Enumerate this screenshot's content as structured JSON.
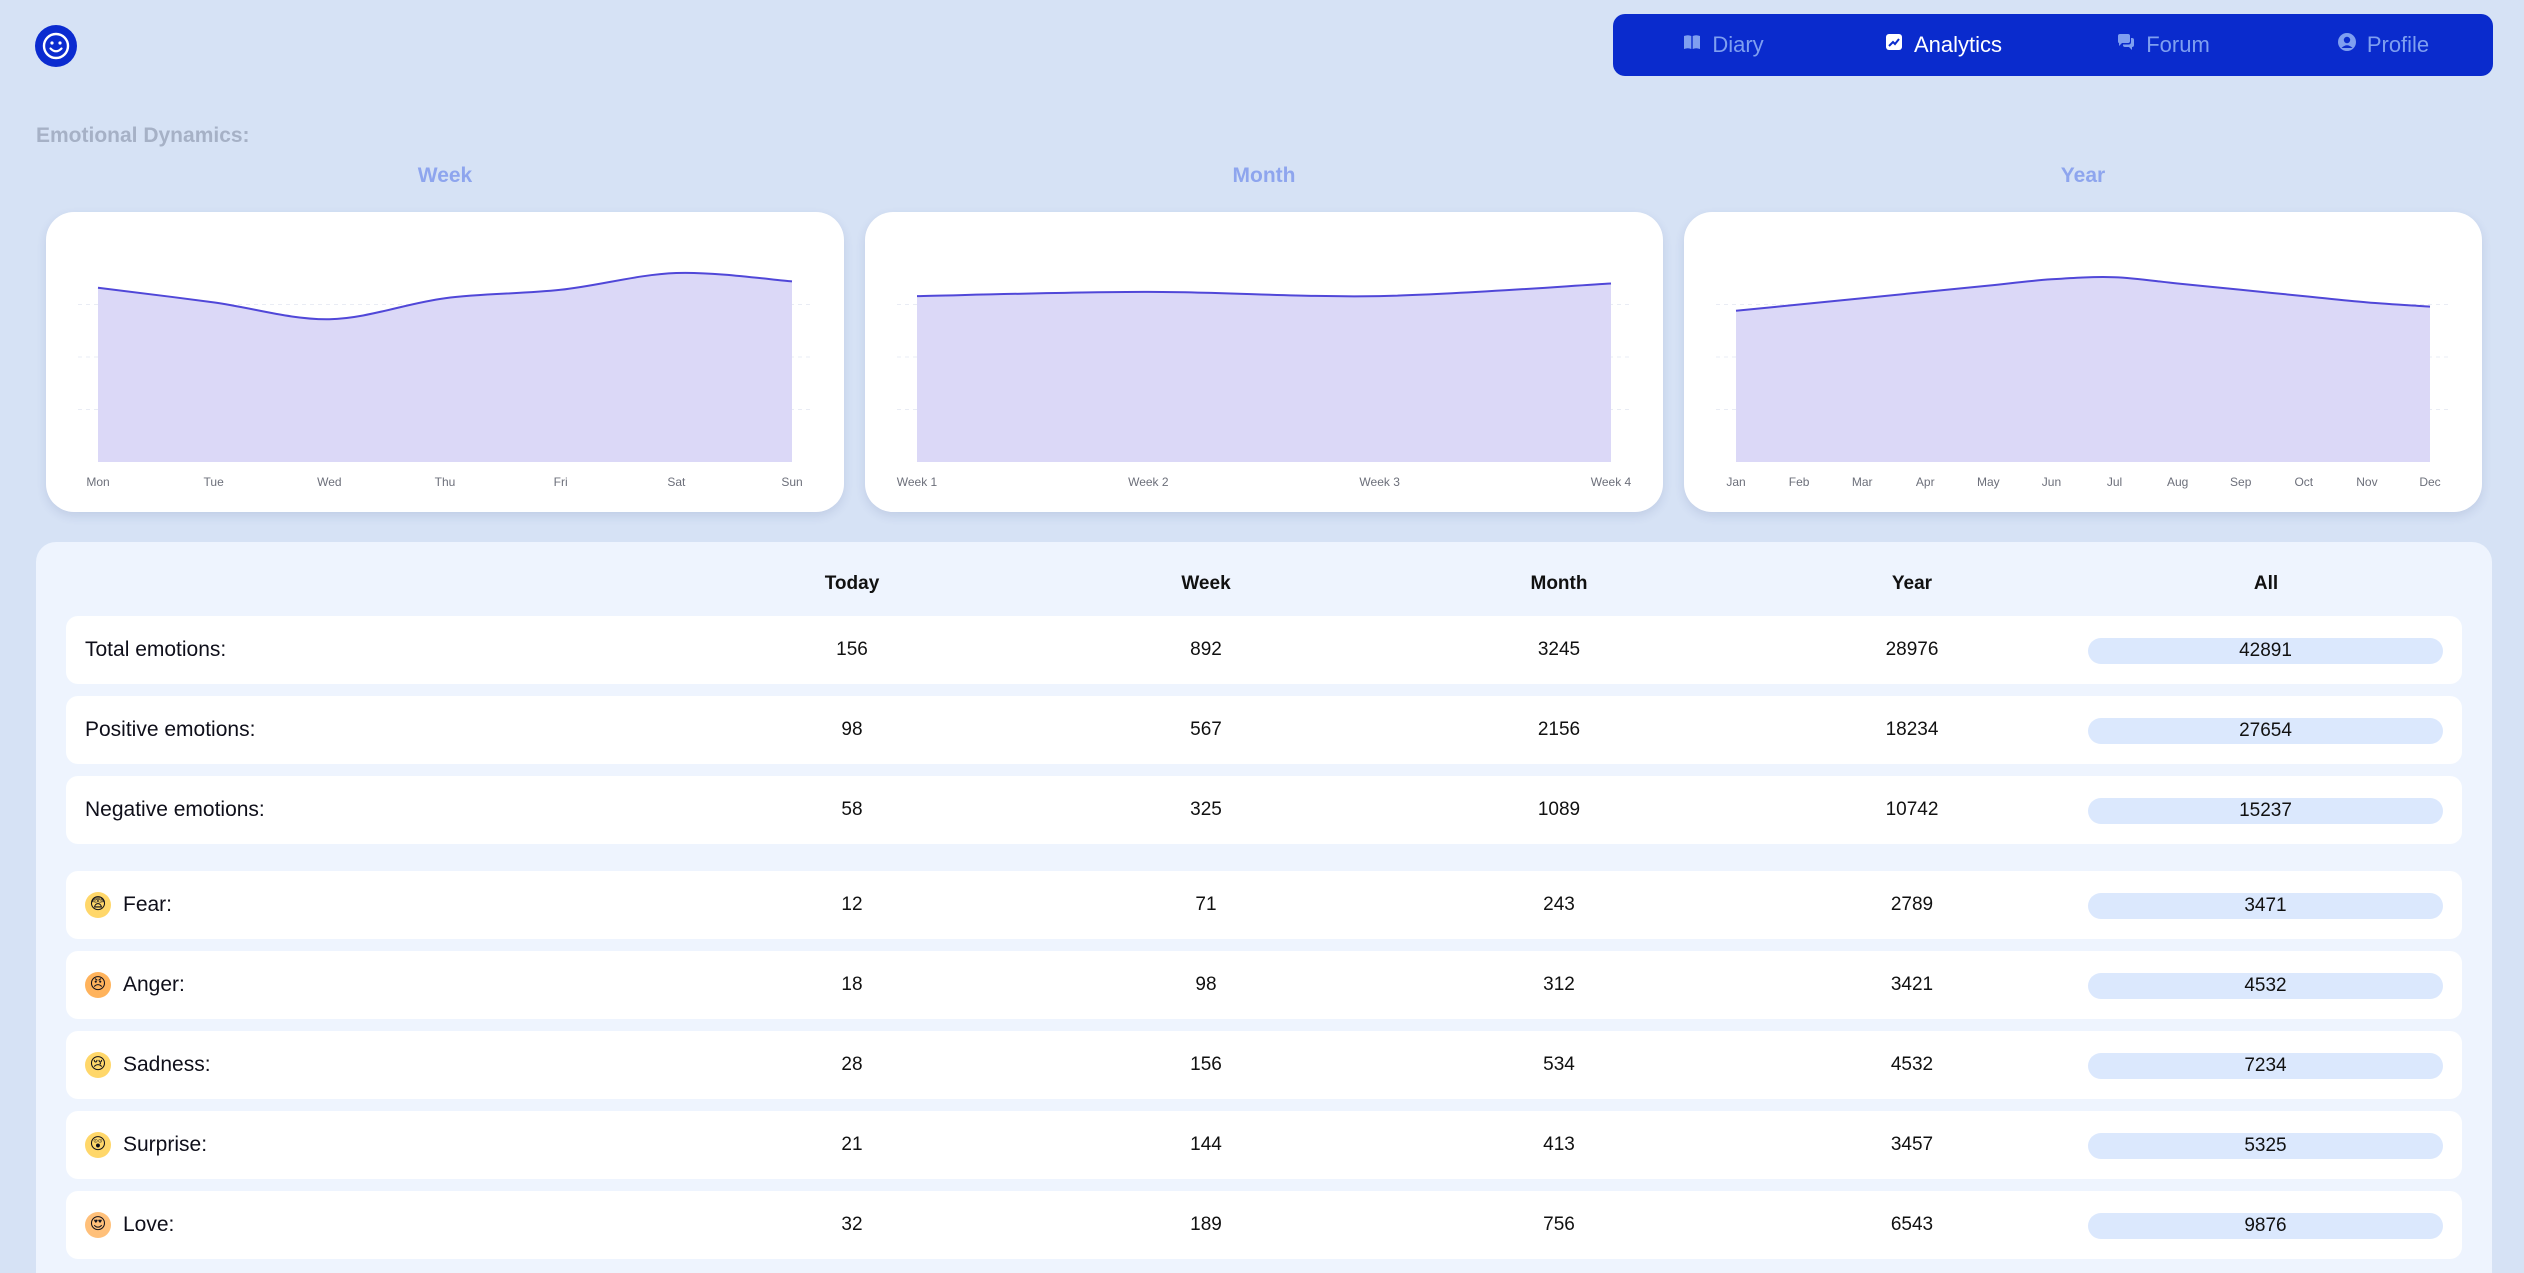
{
  "app": {
    "logo_icon": "smiley-icon"
  },
  "nav": {
    "items": [
      {
        "label": "Diary",
        "icon": "book-icon",
        "active": false
      },
      {
        "label": "Analytics",
        "icon": "chart-icon",
        "active": true
      },
      {
        "label": "Forum",
        "icon": "chat-icon",
        "active": false
      },
      {
        "label": "Profile",
        "icon": "user-icon",
        "active": false
      }
    ]
  },
  "section_title": "Emotional Dynamics:",
  "colors": {
    "accent": "#0a2bcd",
    "chart_line": "#5047d8",
    "chart_fill": "#dbd8f7",
    "background": "#d6e2f5"
  },
  "chart_data": [
    {
      "type": "area",
      "title": "Week",
      "categories": [
        "Mon",
        "Tue",
        "Wed",
        "Thu",
        "Fri",
        "Sat",
        "Sun"
      ],
      "values": [
        0.83,
        0.76,
        0.68,
        0.78,
        0.82,
        0.9,
        0.86
      ],
      "ylim": [
        0,
        1
      ],
      "grid": true
    },
    {
      "type": "area",
      "title": "Month",
      "categories": [
        "Week 1",
        "Week 2",
        "Week 3",
        "Week 4"
      ],
      "values": [
        0.79,
        0.81,
        0.79,
        0.85
      ],
      "ylim": [
        0,
        1
      ],
      "grid": true
    },
    {
      "type": "area",
      "title": "Year",
      "categories": [
        "Jan",
        "Feb",
        "Mar",
        "Apr",
        "May",
        "Jun",
        "Jul",
        "Aug",
        "Sep",
        "Oct",
        "Nov",
        "Dec"
      ],
      "values": [
        0.72,
        0.75,
        0.78,
        0.81,
        0.84,
        0.87,
        0.88,
        0.85,
        0.82,
        0.79,
        0.76,
        0.74
      ],
      "ylim": [
        0,
        1
      ],
      "grid": true
    }
  ],
  "table": {
    "columns": [
      "Today",
      "Week",
      "Month",
      "Year",
      "All"
    ],
    "rows": [
      {
        "label": "Total emotions:",
        "values": [
          "156",
          "892",
          "3245",
          "28976",
          "42891"
        ]
      },
      {
        "label": "Positive emotions:",
        "values": [
          "98",
          "567",
          "2156",
          "18234",
          "27654"
        ]
      },
      {
        "label": "Negative emotions:",
        "values": [
          "58",
          "325",
          "1089",
          "10742",
          "15237"
        ]
      },
      {
        "label": "Fear:",
        "emoji": "😨",
        "icon": "fear-emoji-icon",
        "values": [
          "12",
          "71",
          "243",
          "2789",
          "3471"
        ]
      },
      {
        "label": "Anger:",
        "emoji": "😠",
        "icon": "anger-emoji-icon",
        "values": [
          "18",
          "98",
          "312",
          "3421",
          "4532"
        ]
      },
      {
        "label": "Sadness:",
        "emoji": "😢",
        "icon": "sadness-emoji-icon",
        "values": [
          "28",
          "156",
          "534",
          "4532",
          "7234"
        ]
      },
      {
        "label": "Surprise:",
        "emoji": "😲",
        "icon": "surprise-emoji-icon",
        "values": [
          "21",
          "144",
          "413",
          "3457",
          "5325"
        ]
      },
      {
        "label": "Love:",
        "emoji": "😍",
        "icon": "love-emoji-icon",
        "values": [
          "32",
          "189",
          "756",
          "6543",
          "9876"
        ]
      }
    ]
  }
}
